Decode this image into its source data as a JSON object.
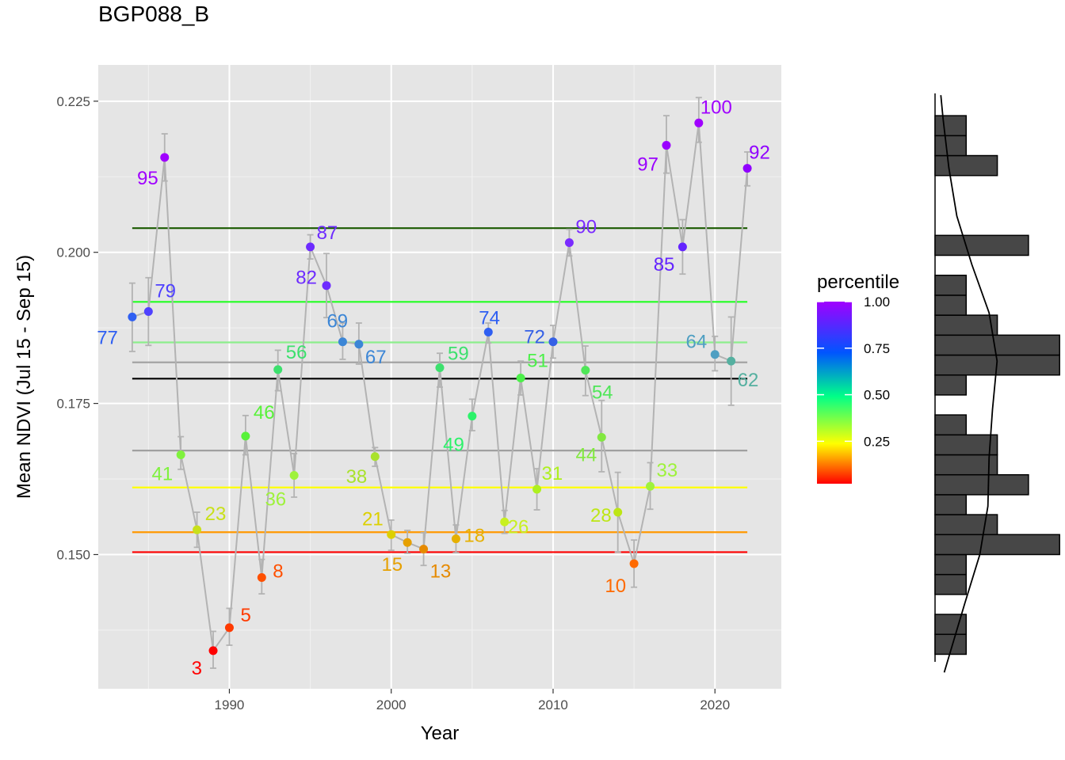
{
  "chart_data": {
    "type": "line",
    "title": "BGP088_B",
    "xlabel": "Year",
    "ylabel": "Mean NDVI (Jul 15 - Sep 15)",
    "xlim": [
      1981.9,
      2024.1
    ],
    "ylim": [
      0.1278,
      0.231
    ],
    "x_ticks": [
      1990,
      2000,
      2010,
      2020
    ],
    "y_ticks": [
      0.15,
      0.175,
      0.2,
      0.225
    ],
    "x_tick_labels": [
      "1990",
      "2000",
      "2010",
      "2020"
    ],
    "y_tick_labels": [
      "0.150",
      "0.175",
      "0.200",
      "0.225"
    ],
    "grid": true,
    "series": [
      {
        "x": [
          1984,
          1985,
          1986,
          1987,
          1988,
          1989,
          1990,
          1991,
          1992,
          1993,
          1994,
          1995,
          1996,
          1997,
          1998,
          1999,
          2000,
          2001,
          2002,
          2003,
          2004,
          2005,
          2006,
          2007,
          2008,
          2009,
          2010,
          2011,
          2012,
          2013,
          2014,
          2015,
          2016,
          2017,
          2018,
          2019,
          2020,
          2021,
          2022
        ],
        "y": [
          0.1893,
          0.1902,
          0.2157,
          0.1665,
          0.1541,
          0.1341,
          0.1379,
          0.1696,
          0.1462,
          0.1806,
          0.1631,
          0.2009,
          0.1945,
          0.1852,
          0.1848,
          0.1662,
          0.1533,
          0.152,
          0.1509,
          0.1809,
          0.1526,
          0.1729,
          0.1868,
          0.1554,
          0.1792,
          0.1608,
          0.1852,
          0.2016,
          0.1805,
          0.1694,
          0.157,
          0.1485,
          0.1613,
          0.2177,
          0.2009,
          0.2214,
          0.1831,
          0.182,
          0.2139
        ],
        "error_low": [
          0.1836,
          0.1846,
          0.2118,
          0.1641,
          0.1512,
          0.1312,
          0.135,
          0.1665,
          0.1435,
          0.1771,
          0.1595,
          0.1989,
          0.1892,
          0.1823,
          0.1815,
          0.1646,
          0.1507,
          0.1502,
          0.1482,
          0.1777,
          0.1503,
          0.1705,
          0.185,
          0.1535,
          0.1764,
          0.1574,
          0.1825,
          0.1994,
          0.1763,
          0.1637,
          0.1504,
          0.1446,
          0.1575,
          0.2131,
          0.1964,
          0.2182,
          0.1804,
          0.1747,
          0.211
        ],
        "error_high": [
          0.1949,
          0.1958,
          0.2196,
          0.1695,
          0.157,
          0.1373,
          0.1411,
          0.173,
          0.1492,
          0.1838,
          0.1667,
          0.2029,
          0.1998,
          0.1883,
          0.1883,
          0.1677,
          0.1557,
          0.154,
          0.1536,
          0.1833,
          0.1549,
          0.1757,
          0.1883,
          0.1573,
          0.182,
          0.1642,
          0.1879,
          0.2038,
          0.1845,
          0.1755,
          0.1636,
          0.1524,
          0.1652,
          0.2226,
          0.2054,
          0.2256,
          0.1861,
          0.1893,
          0.2166
        ],
        "percentile_labels": [
          "77",
          "79",
          "95",
          "41",
          "23",
          "3",
          "5",
          "46",
          "8",
          "56",
          "36",
          "87",
          "82",
          "69",
          "67",
          "38",
          "21",
          "15",
          "13",
          "59",
          "18",
          "49",
          "74",
          "26",
          "51",
          "31",
          "72",
          "90",
          "54",
          "44",
          "28",
          "10",
          "33",
          "97",
          "85",
          "100",
          "64",
          "62",
          "92"
        ],
        "colors": [
          "#2f5ff2",
          "#4f41ff",
          "#a000ff",
          "#7ff23d",
          "#c8e01a",
          "#ff0000",
          "#ff3a00",
          "#58f239",
          "#ff5000",
          "#3ce06d",
          "#9ef23b",
          "#6d2bff",
          "#6d2bff",
          "#3c86d6",
          "#3c86d6",
          "#a9e22c",
          "#dcd000",
          "#e6a000",
          "#e68a00",
          "#3ce06d",
          "#e6b000",
          "#2cf26a",
          "#2f5ff2",
          "#c8f020",
          "#4cf04a",
          "#aef01e",
          "#3560e6",
          "#7a2bff",
          "#4fe658",
          "#82e840",
          "#bde614",
          "#ff6a00",
          "#9ef23b",
          "#9a00ff",
          "#6424ff",
          "#a000ff",
          "#4f9fc2",
          "#55b0a0",
          "#9000ff"
        ]
      }
    ],
    "reference_lines": [
      {
        "y": 0.204,
        "color": "#1a5a00"
      },
      {
        "y": 0.1918,
        "color": "#22ff22"
      },
      {
        "y": 0.1851,
        "color": "#8cee8c"
      },
      {
        "y": 0.1818,
        "color": "#a0a0a0"
      },
      {
        "y": 0.1791,
        "color": "#000000"
      },
      {
        "y": 0.1672,
        "color": "#a0a0a0"
      },
      {
        "y": 0.1611,
        "color": "#ffff00"
      },
      {
        "y": 0.1537,
        "color": "#ff9900"
      },
      {
        "y": 0.1504,
        "color": "#ff0000"
      }
    ],
    "legend": {
      "title": "percentile",
      "labels": [
        "1.00",
        "0.75",
        "0.50",
        "0.25"
      ],
      "values": [
        1.0,
        0.75,
        0.5,
        0.25
      ],
      "gradient": [
        "#a000ff",
        "#0055ff",
        "#00ff88",
        "#ffff00",
        "#ff0000"
      ],
      "placement": "right"
    },
    "histogram": {
      "orientation": "horizontal",
      "bin_width": 0.0033,
      "bins": [
        {
          "y0": 0.1335,
          "y1": 0.1368,
          "count": 1
        },
        {
          "y0": 0.1368,
          "y1": 0.1401,
          "count": 1
        },
        {
          "y0": 0.1434,
          "y1": 0.1467,
          "count": 1
        },
        {
          "y0": 0.1467,
          "y1": 0.15,
          "count": 1
        },
        {
          "y0": 0.15,
          "y1": 0.1533,
          "count": 4
        },
        {
          "y0": 0.1533,
          "y1": 0.1566,
          "count": 2
        },
        {
          "y0": 0.1566,
          "y1": 0.1599,
          "count": 1
        },
        {
          "y0": 0.1599,
          "y1": 0.1632,
          "count": 3
        },
        {
          "y0": 0.1632,
          "y1": 0.1665,
          "count": 2
        },
        {
          "y0": 0.1665,
          "y1": 0.1698,
          "count": 2
        },
        {
          "y0": 0.1698,
          "y1": 0.1731,
          "count": 1
        },
        {
          "y0": 0.1764,
          "y1": 0.1797,
          "count": 1
        },
        {
          "y0": 0.1797,
          "y1": 0.183,
          "count": 4
        },
        {
          "y0": 0.183,
          "y1": 0.1863,
          "count": 4
        },
        {
          "y0": 0.1863,
          "y1": 0.1896,
          "count": 2
        },
        {
          "y0": 0.1896,
          "y1": 0.1929,
          "count": 1
        },
        {
          "y0": 0.1929,
          "y1": 0.1962,
          "count": 1
        },
        {
          "y0": 0.1995,
          "y1": 0.2028,
          "count": 3
        },
        {
          "y0": 0.2127,
          "y1": 0.216,
          "count": 2
        },
        {
          "y0": 0.216,
          "y1": 0.2193,
          "count": 1
        },
        {
          "y0": 0.2193,
          "y1": 0.2226,
          "count": 1
        }
      ],
      "density": [
        {
          "y": 0.1305,
          "v": 0.4
        },
        {
          "y": 0.135,
          "v": 0.75
        },
        {
          "y": 0.142,
          "v": 1.3
        },
        {
          "y": 0.15,
          "v": 1.95
        },
        {
          "y": 0.158,
          "v": 2.3
        },
        {
          "y": 0.166,
          "v": 2.35
        },
        {
          "y": 0.174,
          "v": 2.5
        },
        {
          "y": 0.182,
          "v": 2.7
        },
        {
          "y": 0.19,
          "v": 2.35
        },
        {
          "y": 0.198,
          "v": 1.6
        },
        {
          "y": 0.206,
          "v": 0.95
        },
        {
          "y": 0.214,
          "v": 0.6
        },
        {
          "y": 0.222,
          "v": 0.35
        },
        {
          "y": 0.226,
          "v": 0.25
        }
      ]
    }
  }
}
